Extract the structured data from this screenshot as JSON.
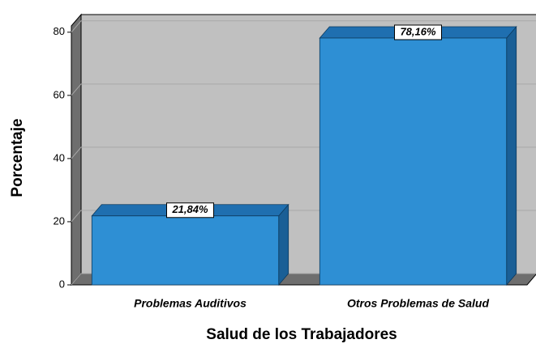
{
  "chart_data": {
    "type": "bar",
    "categories": [
      "Problemas Auditivos",
      "Otros Problemas de Salud"
    ],
    "values": [
      21.84,
      78.16
    ],
    "value_labels": [
      "21,84%",
      "78,16%"
    ],
    "color": "#2e8fd4",
    "xlabel": "Salud de los Trabajadores",
    "ylabel": "Porcentaje",
    "ylim": [
      0,
      82
    ],
    "yticks": [
      0,
      20,
      40,
      60,
      80
    ],
    "grid": true
  }
}
